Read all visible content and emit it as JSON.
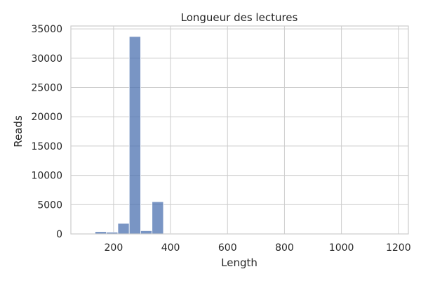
{
  "chart_data": {
    "type": "bar",
    "subtype": "histogram",
    "title": "Longueur des lectures",
    "xlabel": "Length",
    "ylabel": "Reads",
    "xlim": [
      50,
      1235
    ],
    "ylim": [
      0,
      35500
    ],
    "xticks": [
      200,
      400,
      600,
      800,
      1000,
      1200
    ],
    "yticks": [
      0,
      5000,
      10000,
      15000,
      20000,
      25000,
      30000,
      35000
    ],
    "grid": true,
    "bar_color": "#4c72b0",
    "bins": [
      {
        "x0": 95,
        "x1": 135,
        "count": 60
      },
      {
        "x0": 135,
        "x1": 175,
        "count": 400
      },
      {
        "x0": 175,
        "x1": 215,
        "count": 300
      },
      {
        "x0": 215,
        "x1": 255,
        "count": 1800
      },
      {
        "x0": 255,
        "x1": 295,
        "count": 33700
      },
      {
        "x0": 295,
        "x1": 335,
        "count": 550
      },
      {
        "x0": 335,
        "x1": 375,
        "count": 5500
      },
      {
        "x0": 375,
        "x1": 415,
        "count": 50
      },
      {
        "x0": 415,
        "x1": 455,
        "count": 40
      },
      {
        "x0": 455,
        "x1": 495,
        "count": 30
      },
      {
        "x0": 495,
        "x1": 535,
        "count": 25
      },
      {
        "x0": 535,
        "x1": 575,
        "count": 20
      },
      {
        "x0": 575,
        "x1": 615,
        "count": 15
      },
      {
        "x0": 615,
        "x1": 655,
        "count": 12
      },
      {
        "x0": 655,
        "x1": 695,
        "count": 10
      },
      {
        "x0": 695,
        "x1": 735,
        "count": 10
      },
      {
        "x0": 735,
        "x1": 775,
        "count": 8
      },
      {
        "x0": 775,
        "x1": 815,
        "count": 8
      },
      {
        "x0": 815,
        "x1": 855,
        "count": 6
      },
      {
        "x0": 855,
        "x1": 895,
        "count": 6
      },
      {
        "x0": 895,
        "x1": 935,
        "count": 5
      },
      {
        "x0": 935,
        "x1": 975,
        "count": 5
      },
      {
        "x0": 975,
        "x1": 1015,
        "count": 4
      },
      {
        "x0": 1015,
        "x1": 1055,
        "count": 4
      },
      {
        "x0": 1055,
        "x1": 1095,
        "count": 3
      },
      {
        "x0": 1095,
        "x1": 1135,
        "count": 3
      },
      {
        "x0": 1135,
        "x1": 1175,
        "count": 2
      },
      {
        "x0": 1175,
        "x1": 1215,
        "count": 2
      }
    ]
  }
}
